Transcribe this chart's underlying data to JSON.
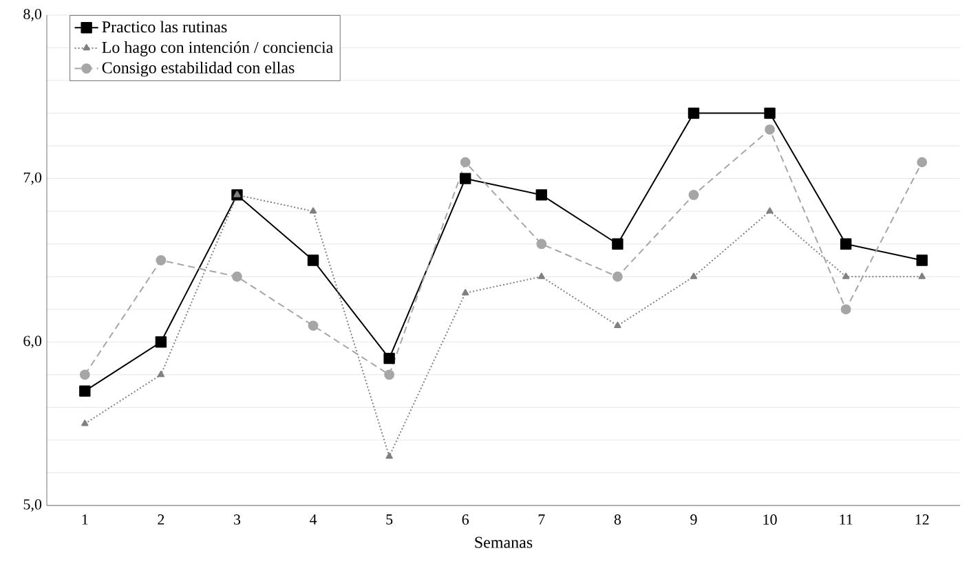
{
  "chart_data": {
    "type": "line",
    "xlabel": "Semanas",
    "categories": [
      "1",
      "2",
      "3",
      "4",
      "5",
      "6",
      "7",
      "8",
      "9",
      "10",
      "11",
      "12"
    ],
    "series": [
      {
        "name": "Practico las rutinas",
        "color": "#000000",
        "marker": "square",
        "line_style": "solid",
        "values": [
          5.7,
          6.0,
          6.9,
          6.5,
          5.9,
          7.0,
          6.9,
          6.6,
          7.4,
          7.4,
          6.6,
          6.5
        ]
      },
      {
        "name": "Lo hago con intención / conciencia",
        "color": "#808080",
        "marker": "triangle",
        "line_style": "dotted",
        "values": [
          5.5,
          5.8,
          6.9,
          6.8,
          5.3,
          6.3,
          6.4,
          6.1,
          6.4,
          6.8,
          6.4,
          6.4
        ]
      },
      {
        "name": "Consigo estabilidad con ellas",
        "color": "#a6a6a6",
        "marker": "circle",
        "line_style": "dashed",
        "values": [
          5.8,
          6.5,
          6.4,
          6.1,
          5.8,
          7.1,
          6.6,
          6.4,
          6.9,
          7.3,
          6.2,
          7.1
        ]
      }
    ],
    "ylim": [
      5,
      8
    ],
    "yticks": [
      {
        "value": 5,
        "label": "5,0"
      },
      {
        "value": 5.2,
        "label": null
      },
      {
        "value": 5.4,
        "label": null
      },
      {
        "value": 5.6,
        "label": null
      },
      {
        "value": 5.8,
        "label": null
      },
      {
        "value": 6,
        "label": "6,0"
      },
      {
        "value": 6.2,
        "label": null
      },
      {
        "value": 6.4,
        "label": null
      },
      {
        "value": 6.6,
        "label": null
      },
      {
        "value": 6.8,
        "label": null
      },
      {
        "value": 7,
        "label": "7,0"
      },
      {
        "value": 7.2,
        "label": null
      },
      {
        "value": 7.4,
        "label": null
      },
      {
        "value": 7.6,
        "label": null
      },
      {
        "value": 7.8,
        "label": null
      },
      {
        "value": 8,
        "label": "8,0"
      }
    ],
    "grid": "y",
    "legend": "top left"
  }
}
